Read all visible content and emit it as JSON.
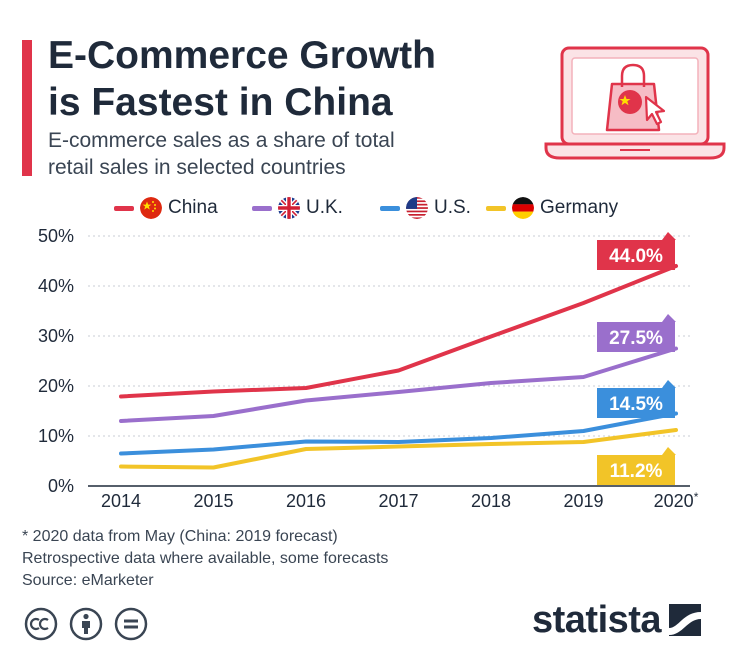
{
  "title_lines": [
    "E-Commerce Growth",
    "is Fastest in China"
  ],
  "subtitle_lines": [
    "E-commerce sales as a share of total",
    "retail sales in selected countries"
  ],
  "accent_color": "#e0344a",
  "icon": "laptop-shopping-bag-china-icon",
  "legend": [
    {
      "label": "China",
      "color": "#e0344a",
      "flag": "china-flag-icon"
    },
    {
      "label": "U.K.",
      "color": "#9a6fcc",
      "flag": "uk-flag-icon"
    },
    {
      "label": "U.S.",
      "color": "#3b8fdc",
      "flag": "us-flag-icon"
    },
    {
      "label": "Germany",
      "color": "#f2c428",
      "flag": "germany-flag-icon"
    }
  ],
  "chart_data": {
    "type": "line",
    "x": [
      "2014",
      "2015",
      "2016",
      "2017",
      "2018",
      "2019",
      "2020*"
    ],
    "yticks": [
      "0%",
      "10%",
      "20%",
      "30%",
      "40%",
      "50%"
    ],
    "ylim": [
      0,
      50
    ],
    "grid": true,
    "legend_position": "top",
    "series": [
      {
        "name": "China",
        "color": "#e0344a",
        "values": [
          17.9,
          18.9,
          19.6,
          23.1,
          29.9,
          36.6,
          44.0
        ],
        "end_label": "44.0%"
      },
      {
        "name": "U.K.",
        "color": "#9a6fcc",
        "values": [
          13.0,
          14.0,
          17.1,
          18.8,
          20.6,
          21.8,
          27.5
        ],
        "end_label": "27.5%"
      },
      {
        "name": "U.S.",
        "color": "#3b8fdc",
        "values": [
          6.5,
          7.3,
          8.9,
          8.8,
          9.6,
          11.0,
          14.5
        ],
        "end_label": "14.5%"
      },
      {
        "name": "Germany",
        "color": "#f2c428",
        "values": [
          3.9,
          3.7,
          7.4,
          7.9,
          8.4,
          8.8,
          11.2
        ],
        "end_label": "11.2%"
      }
    ]
  },
  "footnotes": [
    "* 2020 data from May (China: 2019 forecast)",
    "Retrospective data where available, some forecasts",
    "Source: eMarketer"
  ],
  "license_icons": [
    "cc-icon",
    "attribution-icon",
    "no-derivatives-icon"
  ],
  "brand": "statista"
}
